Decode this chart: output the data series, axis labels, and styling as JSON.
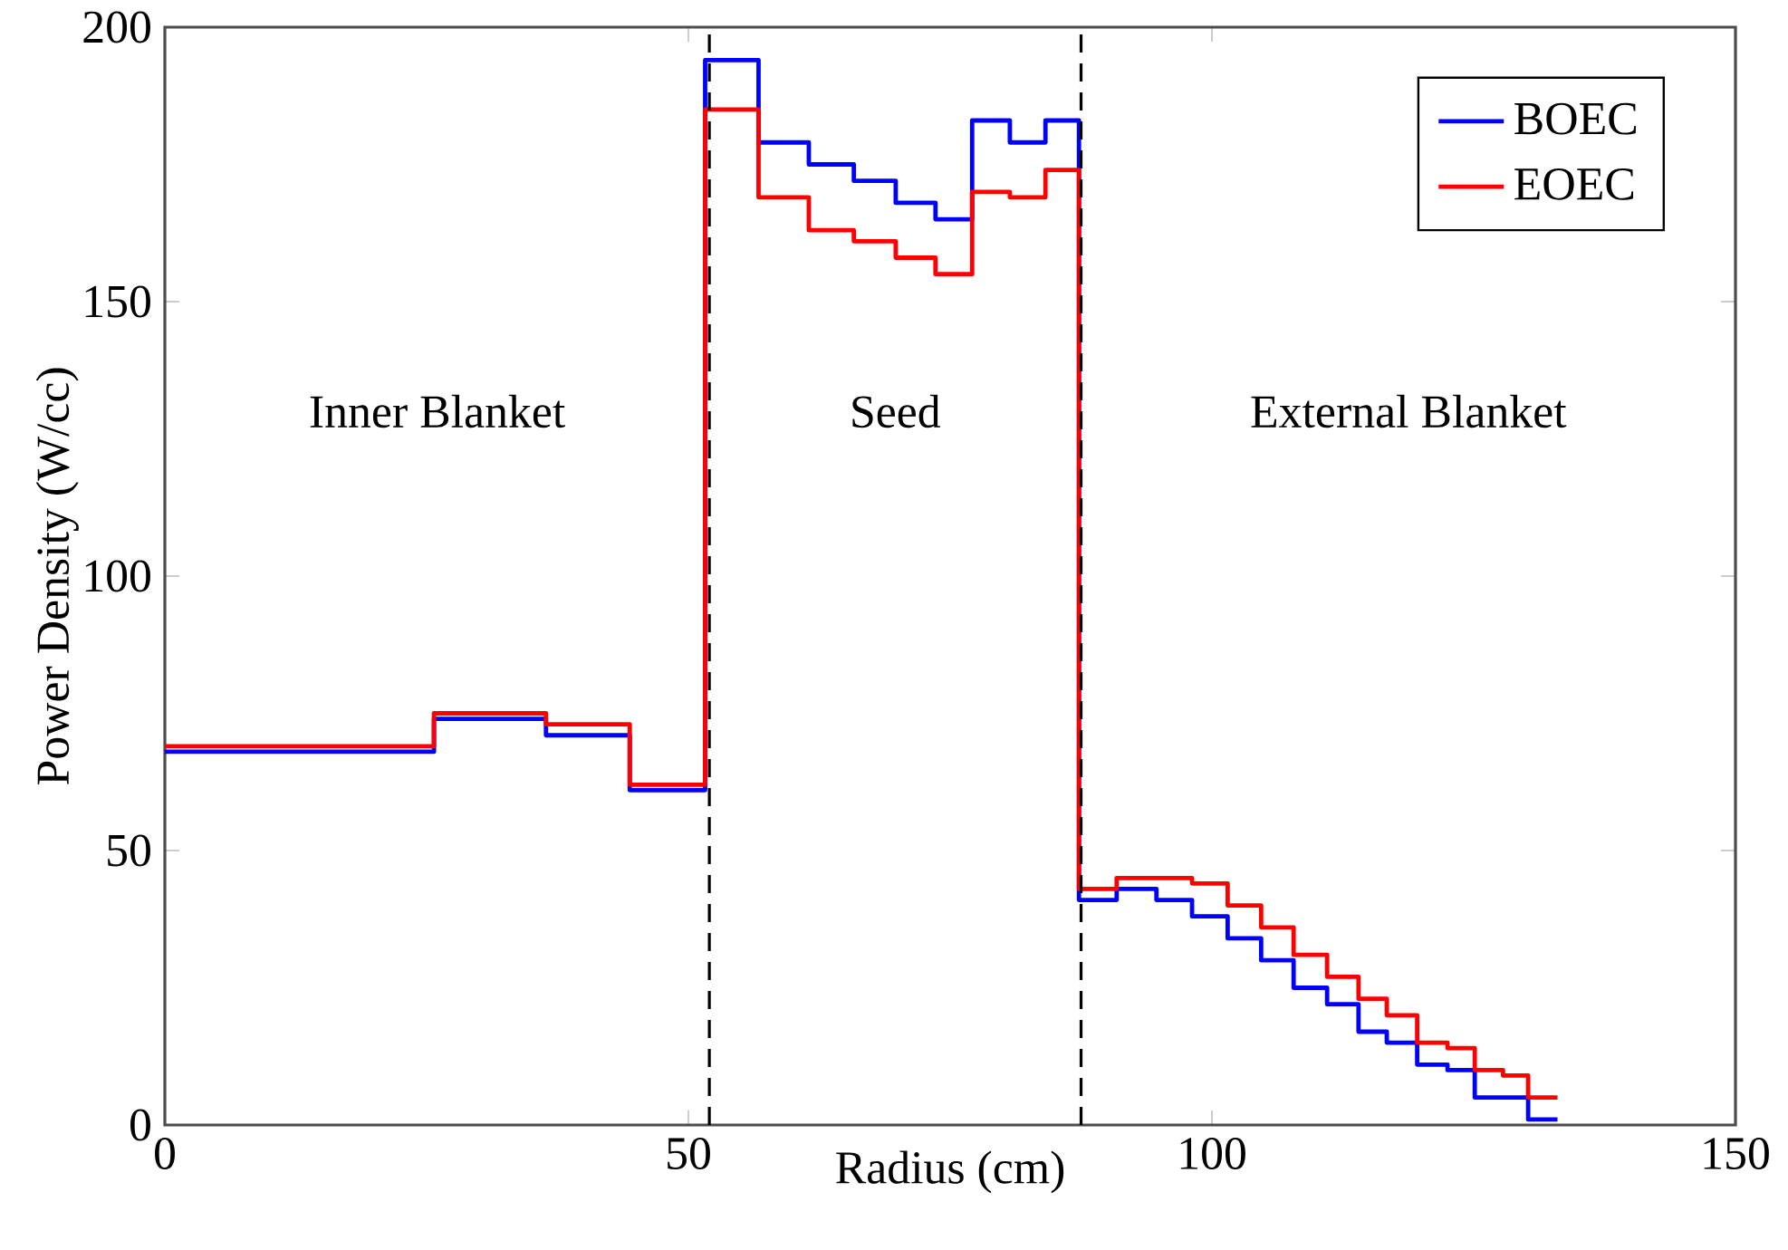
{
  "chart_data": {
    "type": "step",
    "xlabel": "Radius (cm)",
    "ylabel": "Power Density (W/cc)",
    "x": [
      0,
      25.7,
      36.4,
      44.4,
      51.6,
      56.7,
      61.5,
      65.8,
      69.8,
      73.6,
      77.1,
      80.7,
      84.1,
      87.3,
      90.9,
      94.7,
      98.1,
      101.5,
      104.7,
      107.8,
      111.0,
      114.0,
      116.7,
      119.6,
      122.5,
      125.1,
      127.8,
      130.2,
      133.0
    ],
    "series": [
      {
        "name": "BOEC",
        "color": "#0000ff",
        "values": [
          68,
          74,
          71,
          61,
          194,
          179,
          175,
          172,
          168,
          165,
          183,
          179,
          183,
          41,
          43,
          41,
          38,
          34,
          30,
          25,
          22,
          17,
          15,
          11,
          10,
          5,
          5,
          1,
          1
        ]
      },
      {
        "name": "EOEC",
        "color": "#ff0000",
        "values": [
          69,
          75,
          73,
          62,
          185,
          169,
          163,
          161,
          158,
          155,
          170,
          169,
          174,
          43,
          45,
          45,
          44,
          40,
          36,
          31,
          27,
          23,
          20,
          15,
          14,
          10,
          9,
          5,
          5
        ]
      }
    ],
    "xlim": [
      0,
      150
    ],
    "ylim": [
      0,
      200
    ],
    "xticks": [
      0,
      50,
      100,
      150
    ],
    "yticks": [
      0,
      50,
      100,
      150,
      200
    ],
    "ref_lines": [
      {
        "axis": "x",
        "value": 52,
        "color": "#000000",
        "line_style": "dashed"
      },
      {
        "axis": "x",
        "value": 87.5,
        "color": "#000000",
        "line_style": "dashed"
      }
    ],
    "annotations": [
      "Inner Blanket",
      "Seed",
      "External Blanket"
    ],
    "legend": "top right",
    "grid": false,
    "marker": "none",
    "line_style": "solid"
  }
}
